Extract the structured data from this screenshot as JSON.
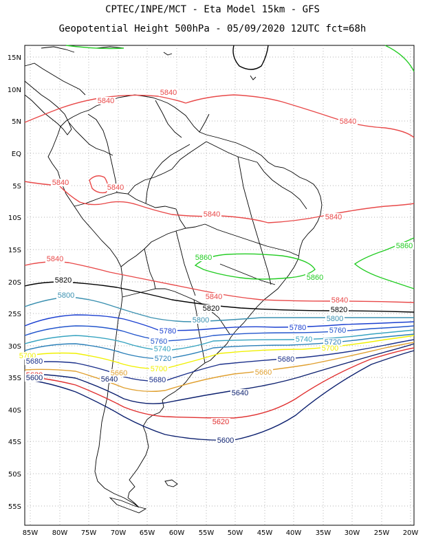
{
  "title_line1": "CPTEC/INPE/MCT -  Eta Model 15km - GFS",
  "title_line2": "Geopotential Height 500hPa - 05/09/2020 12UTC fct=68h",
  "lat_labels": [
    "15N",
    "10N",
    "5N",
    "EQ",
    "5S",
    "10S",
    "15S",
    "20S",
    "25S",
    "30S",
    "35S",
    "40S",
    "45S",
    "50S",
    "55S"
  ],
  "lon_labels": [
    "85W",
    "80W",
    "75W",
    "70W",
    "65W",
    "60W",
    "55W",
    "50W",
    "45W",
    "40W",
    "35W",
    "30W",
    "25W",
    "20W"
  ],
  "colors": {
    "c5600": "#0b1f6e",
    "c5620": "#e03030",
    "c5640": "#0b1f6e",
    "c5660": "#e0a030",
    "c5680": "#1a2f8a",
    "c5700": "#f0f000",
    "c5720": "#2a7fb8",
    "c5740": "#36a3c0",
    "c5760": "#2255cc",
    "c5780": "#1a3fd0",
    "c5800": "#3a90b0",
    "c5820": "#000000",
    "c5840": "#e84848",
    "c5860": "#22cc22",
    "coast": "#000000",
    "grid": "#888888"
  },
  "contour_labels": [
    {
      "text": "5840",
      "c": "c5840"
    },
    {
      "text": "5840",
      "c": "c5840"
    },
    {
      "text": "5840",
      "c": "c5840"
    },
    {
      "text": "5840",
      "c": "c5840"
    },
    {
      "text": "5840",
      "c": "c5840"
    },
    {
      "text": "5840",
      "c": "c5840"
    },
    {
      "text": "5840",
      "c": "c5840"
    },
    {
      "text": "5840",
      "c": "c5840"
    },
    {
      "text": "5840",
      "c": "c5840"
    },
    {
      "text": "5840",
      "c": "c5840"
    },
    {
      "text": "5860",
      "c": "c5860"
    },
    {
      "text": "5860",
      "c": "c5860"
    },
    {
      "text": "5860",
      "c": "c5860"
    },
    {
      "text": "5820",
      "c": "c5820"
    },
    {
      "text": "5820",
      "c": "c5820"
    },
    {
      "text": "5820",
      "c": "c5820"
    },
    {
      "text": "5800",
      "c": "c5800"
    },
    {
      "text": "5800",
      "c": "c5800"
    },
    {
      "text": "5800",
      "c": "c5800"
    },
    {
      "text": "5780",
      "c": "c5780"
    },
    {
      "text": "5780",
      "c": "c5780"
    },
    {
      "text": "5760",
      "c": "c5760"
    },
    {
      "text": "5760",
      "c": "c5760"
    },
    {
      "text": "5740",
      "c": "c5740"
    },
    {
      "text": "5740",
      "c": "c5740"
    },
    {
      "text": "5720",
      "c": "c5720"
    },
    {
      "text": "5720",
      "c": "c5720"
    },
    {
      "text": "5700",
      "c": "c5700"
    },
    {
      "text": "5700",
      "c": "c5700"
    },
    {
      "text": "5700",
      "c": "c5700"
    },
    {
      "text": "5680",
      "c": "c5680"
    },
    {
      "text": "5680",
      "c": "c5680"
    },
    {
      "text": "5680",
      "c": "c5680"
    },
    {
      "text": "5660",
      "c": "c5660"
    },
    {
      "text": "5660",
      "c": "c5660"
    },
    {
      "text": "5640",
      "c": "c5640"
    },
    {
      "text": "5640",
      "c": "c5640"
    },
    {
      "text": "5620",
      "c": "c5620"
    },
    {
      "text": "5620",
      "c": "c5620"
    },
    {
      "text": "5600",
      "c": "c5600"
    },
    {
      "text": "5600",
      "c": "c5600"
    }
  ]
}
